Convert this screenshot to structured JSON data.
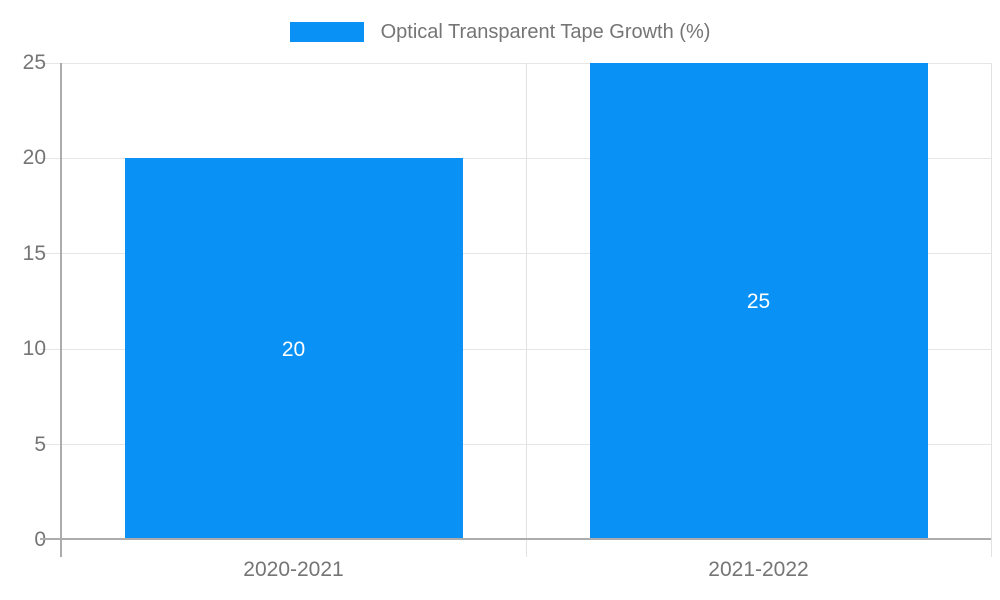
{
  "legend": {
    "label": "Optical Transparent Tape Growth (%)"
  },
  "chart_data": {
    "type": "bar",
    "title": "Optical Transparent Tape Growth (%)",
    "categories": [
      "2020-2021",
      "2021-2022"
    ],
    "values": [
      20,
      25
    ],
    "data_labels": [
      "20",
      "25"
    ],
    "series": [
      {
        "name": "Optical Transparent Tape Growth (%)",
        "values": [
          20,
          25
        ]
      }
    ],
    "xlabel": "",
    "ylabel": "",
    "ylim": [
      0,
      25
    ],
    "yticks": [
      0,
      5,
      10,
      15,
      20,
      25
    ],
    "grid": true,
    "legend_position": "top-center",
    "colors": {
      "bar": "#0A91F5",
      "grid_line": "#E6E6E6",
      "boundary_line": "#E2E2E2",
      "axis_line": "#ACACAC",
      "tick_label": "#757575",
      "legend_label": "#757575",
      "bar_label": "#FFFFFF",
      "background": "#FFFFFF"
    }
  }
}
